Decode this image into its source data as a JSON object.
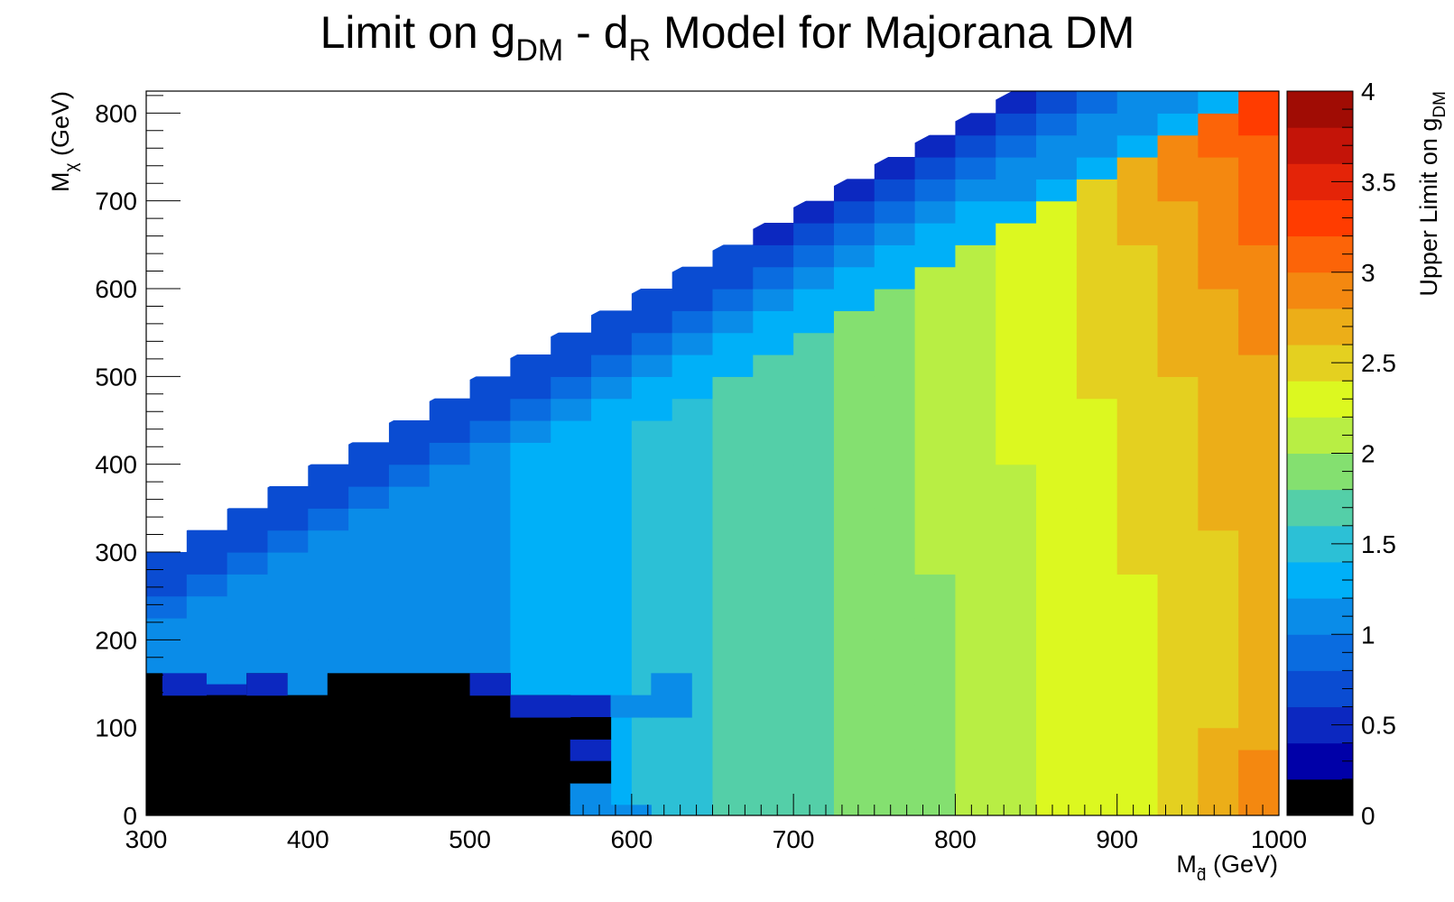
{
  "chart_data": {
    "type": "heatmap",
    "title": {
      "parts": [
        {
          "text": "Limit on g",
          "sub": false
        },
        {
          "text": "DM",
          "sub": true
        },
        {
          "text": " - d",
          "sub": false
        },
        {
          "text": "R",
          "sub": true
        },
        {
          "text": " Model for Majorana DM",
          "sub": false
        }
      ]
    },
    "xlabel": {
      "main": "M",
      "sub": "d̃",
      "rest": " (GeV)"
    },
    "ylabel": {
      "main": "M",
      "sub": "χ",
      "rest": " (GeV)"
    },
    "zlabel": {
      "main": "Upper Limit on g",
      "sub": "DM"
    },
    "xlim": [
      300,
      1000
    ],
    "ylim": [
      0,
      825
    ],
    "zlim": [
      0,
      4
    ],
    "x_ticks": [
      300,
      400,
      500,
      600,
      700,
      800,
      900,
      1000
    ],
    "x_tick_labels": [
      "300",
      "400",
      "500",
      "600",
      "700",
      "800",
      "900",
      "1000"
    ],
    "y_ticks": [
      0,
      100,
      200,
      300,
      400,
      500,
      600,
      700,
      800
    ],
    "y_tick_labels": [
      "0",
      "100",
      "200",
      "300",
      "400",
      "500",
      "600",
      "700",
      "800"
    ],
    "z_ticks": [
      0,
      0.5,
      1,
      1.5,
      2,
      2.5,
      3,
      3.5,
      4
    ],
    "z_tick_labels": [
      "0",
      "0.5",
      "1",
      "1.5",
      "2",
      "2.5",
      "3",
      "3.5",
      "4"
    ],
    "palette": [
      "#000000",
      "#0000a8",
      "#0c28c0",
      "#0a4cd2",
      "#0a6ce0",
      "#0a8ce8",
      "#00b0f8",
      "#2cc0d6",
      "#54cfa8",
      "#84e070",
      "#b8ee44",
      "#dcf820",
      "#e4d020",
      "#ecae18",
      "#f48810",
      "#fc6408",
      "#ff3c00",
      "#e42408",
      "#c41408",
      "#a00c04"
    ],
    "kinematic_edge": {
      "description_free": true,
      "points": [
        [
          300,
          300
        ],
        [
          835,
          825
        ]
      ]
    },
    "grid": false,
    "legend": "colorbar-right",
    "x_bin_width": 25,
    "y_bin_width": 25,
    "grid_values": [
      {
        "y": [
          0,
          137
        ],
        "x": [
          300,
          562
        ],
        "z": 0
      },
      {
        "y": [
          137,
          162
        ],
        "x": [
          300,
          310
        ],
        "z": 0
      },
      {
        "y": [
          137,
          162
        ],
        "x": [
          362,
          387
        ],
        "z": 0
      },
      {
        "y": [
          137,
          162
        ],
        "x": [
          412,
          525
        ],
        "z": 0
      },
      {
        "y": [
          112,
          137
        ],
        "x": [
          562,
          587
        ],
        "z": 0.35
      },
      {
        "y": [
          112,
          137
        ],
        "x": [
          587,
          612
        ],
        "z": 0.9
      },
      {
        "y": [
          62,
          87
        ],
        "x": [
          562,
          587
        ],
        "z": 0.35
      },
      {
        "y": [
          12,
          37
        ],
        "x": [
          562,
          587
        ],
        "z": 0.9
      },
      {
        "y": [
          37,
          62
        ],
        "x": [
          562,
          587
        ],
        "z": 0.0
      },
      {
        "y": [
          87,
          112
        ],
        "x": [
          562,
          587
        ],
        "z": 0.0
      },
      {
        "y": [
          137,
          162
        ],
        "x": [
          310,
          337
        ],
        "z": 0.35
      },
      {
        "y": [
          137,
          162
        ],
        "x": [
          362,
          387
        ],
        "z": 0.35
      },
      {
        "y": [
          137,
          162
        ],
        "x": [
          500,
          525
        ],
        "z": 0.35
      },
      {
        "y": [
          112,
          137
        ],
        "x": [
          525,
          562
        ],
        "z": 0.35
      },
      {
        "y": [
          112,
          162
        ],
        "x": [
          612,
          637
        ],
        "z": 1.0
      },
      {
        "y": [
          0,
          12
        ],
        "x": [
          562,
          587
        ],
        "z": 0.9
      },
      {
        "y": [
          0,
          12
        ],
        "x": [
          587,
          612
        ],
        "z": 0.9
      }
    ]
  }
}
